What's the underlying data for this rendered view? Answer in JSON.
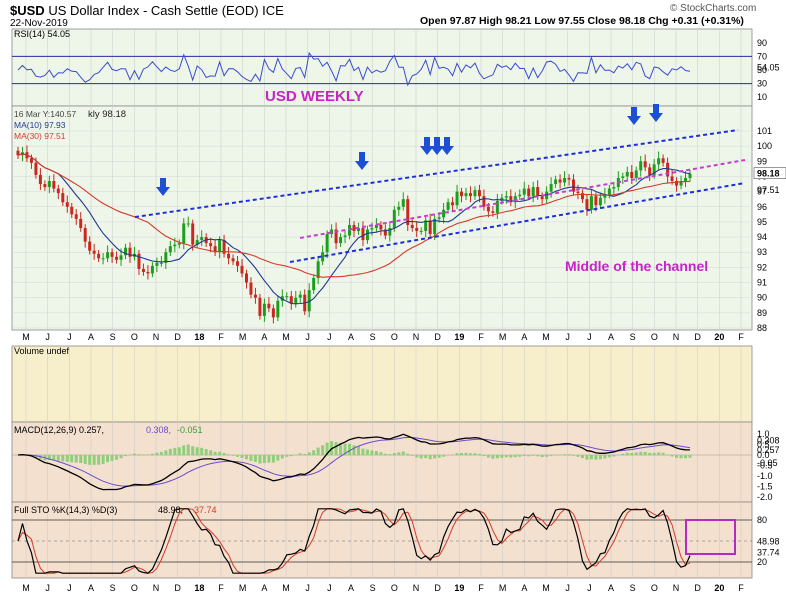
{
  "header": {
    "symbol": "$USD",
    "name": "US Dollar Index - Cash Settle (EOD) ICE",
    "date": "22-Nov-2019",
    "ohlc_text": "Open 97.87  High 98.21  Low 97.55  Close 98.18  Chg +0.31 (+0.31%)",
    "copyright": "© StockCharts.com"
  },
  "colors": {
    "up": "#1b9e1b",
    "down": "#c8281e",
    "ma10": "#1f3a8f",
    "ma30": "#d43a2a",
    "channel": "#1e2ed6",
    "midline": "#c23fd0",
    "arrows": "#1c4fd6",
    "annotation": "#c822c8",
    "price_bg": "#eef6ea",
    "vol_bg": "#f7efcc",
    "osc_bg": "#f3e0cf"
  },
  "chart_data": {
    "type": "candlestick",
    "timeframe": "weekly",
    "x_ticks": [
      "M",
      "J",
      "J",
      "A",
      "S",
      "O",
      "N",
      "D",
      "18",
      "F",
      "M",
      "A",
      "M",
      "J",
      "J",
      "A",
      "S",
      "O",
      "N",
      "D",
      "19",
      "F",
      "M",
      "A",
      "M",
      "J",
      "J",
      "A",
      "S",
      "O",
      "N",
      "D",
      "20",
      "F"
    ],
    "weekly_close": [
      99.4,
      99.6,
      99.2,
      98.9,
      98.1,
      97.5,
      97.3,
      97.7,
      97.2,
      96.9,
      96.3,
      96.0,
      95.5,
      95.2,
      94.6,
      93.7,
      93.1,
      92.9,
      92.6,
      92.6,
      93.0,
      92.7,
      92.5,
      92.8,
      93.3,
      92.7,
      92.9,
      91.9,
      91.7,
      91.6,
      92.1,
      92.3,
      92.3,
      93.0,
      93.4,
      93.5,
      93.6,
      94.9,
      94.9,
      93.5,
      93.8,
      94.0,
      93.6,
      93.4,
      93.0,
      93.8,
      92.9,
      92.6,
      92.4,
      92.1,
      91.6,
      91.0,
      90.2,
      90.0,
      88.8,
      89.6,
      89.3,
      88.7,
      89.8,
      90.1,
      90.1,
      89.6,
      90.0,
      90.2,
      89.1,
      90.5,
      91.3,
      92.4,
      93.0,
      94.2,
      94.5,
      93.6,
      94.0,
      94.1,
      94.8,
      94.4,
      94.6,
      93.8,
      94.5,
      94.6,
      94.8,
      94.5,
      94.1,
      94.6,
      95.8,
      96.0,
      96.5,
      94.8,
      94.6,
      94.4,
      94.4,
      95.1,
      94.2,
      95.2,
      95.3,
      95.8,
      96.3,
      96.1,
      97.0,
      96.7,
      96.9,
      96.7,
      97.1,
      96.7,
      96.0,
      95.7,
      95.6,
      96.4,
      96.6,
      96.7,
      96.3,
      96.7,
      96.8,
      97.2,
      96.7,
      97.3,
      96.7,
      96.5,
      97.0,
      97.5,
      97.8,
      97.6,
      97.9,
      97.8,
      97.0,
      96.9,
      96.5,
      95.8,
      96.7,
      96.1,
      96.6,
      96.8,
      97.2,
      97.3,
      97.9,
      98.0,
      98.3,
      97.9,
      98.4,
      99.0,
      98.6,
      98.1,
      98.8,
      99.2,
      98.9,
      98.0,
      97.7,
      97.4,
      97.7,
      97.9,
      98.18
    ],
    "y_axis": {
      "price": [
        88,
        101
      ],
      "price_ticks": [
        101,
        100,
        99,
        98,
        97,
        96,
        95,
        94,
        93,
        92,
        91,
        90,
        89,
        88
      ]
    },
    "last_label_1": "98.18",
    "last_label_2": "97.51",
    "rsi": {
      "label": "RSI(14) 54.05",
      "levels": [
        70,
        30
      ],
      "ticks": [
        "90",
        "70",
        "50",
        "30",
        "10"
      ],
      "last": "54.05"
    },
    "price_legend": {
      "info": "16 Mar Y:140.57",
      "line": "$USD (Weekly) 98.18",
      "ma10": "MA(10) 97.93",
      "ma30": "MA(30) 97.51"
    },
    "volume": {
      "label": "Volume undef"
    },
    "macd": {
      "label_prefix": "MACD(12,26,9) 0.257,",
      "signal": "0.308,",
      "hist": "-0.051",
      "ticks": [
        "1.0",
        "0.5",
        "0.0",
        "-0.5",
        "-1.0",
        "-1.5",
        "-2.0"
      ],
      "last1": "0.257",
      "last2": "0.308",
      "last3": "-0.05"
    },
    "sto": {
      "label_prefix": "Full STO %K(14,3) %D(3)",
      "k": "48.98,",
      "d": "37.74",
      "ticks": [
        "80",
        "20"
      ],
      "last1": "48.98",
      "last2": "37.74",
      "levels": [
        80,
        20
      ]
    },
    "annotations": {
      "title": "USD WEEKLY",
      "middle": "Middle of the channel"
    }
  }
}
